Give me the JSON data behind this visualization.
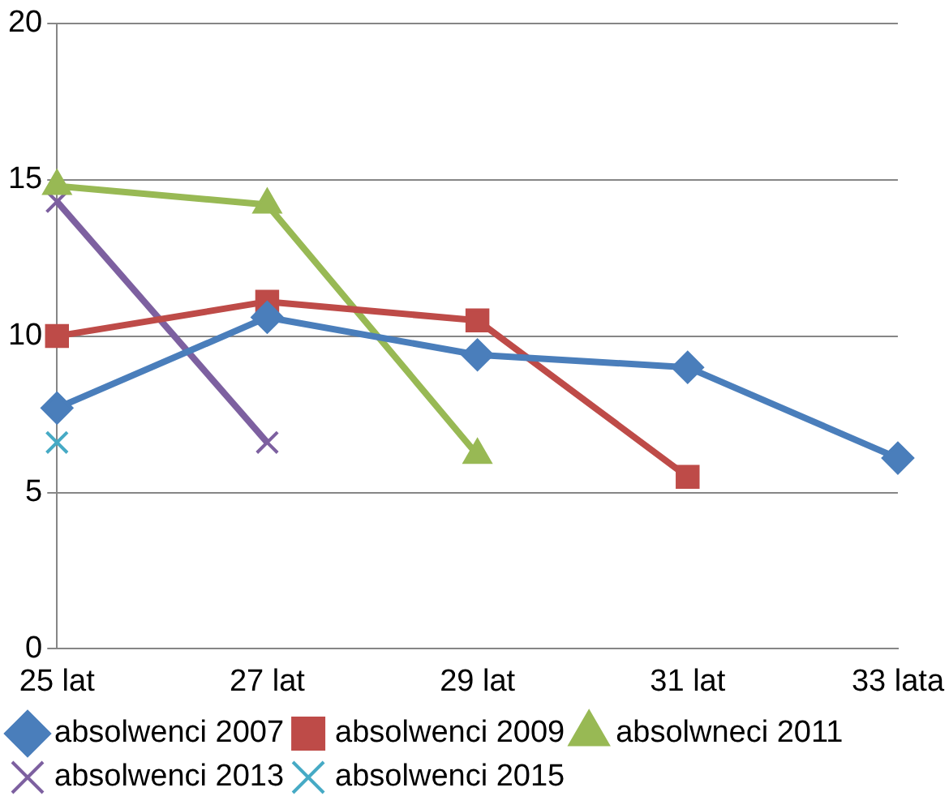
{
  "chart_data": {
    "type": "line",
    "categories": [
      "25 lat",
      "27 lat",
      "29 lat",
      "31 lat",
      "33 lata"
    ],
    "series": [
      {
        "name": "absolwenci 2007",
        "color": "#4a7ebb",
        "marker": "diamond",
        "values": [
          7.7,
          10.6,
          9.4,
          9.0,
          6.1
        ]
      },
      {
        "name": "absolwenci 2009",
        "color": "#be4b48",
        "marker": "square",
        "values": [
          10.0,
          11.1,
          10.5,
          5.5,
          null
        ]
      },
      {
        "name": "absolwneci 2011",
        "color": "#98b954",
        "marker": "triangle",
        "values": [
          14.8,
          14.2,
          6.2,
          null,
          null
        ]
      },
      {
        "name": "absolwenci 2013",
        "color": "#7d60a0",
        "marker": "cross",
        "values": [
          14.3,
          6.6,
          null,
          null,
          null
        ]
      },
      {
        "name": "absolwenci 2015",
        "color": "#46aac5",
        "marker": "cross",
        "values": [
          6.6,
          null,
          null,
          null,
          null
        ]
      }
    ],
    "ylim": [
      0,
      20
    ],
    "yticks": [
      0,
      5,
      10,
      15,
      20
    ],
    "grid": "y",
    "legend": "bottom",
    "line_style": "solid"
  }
}
